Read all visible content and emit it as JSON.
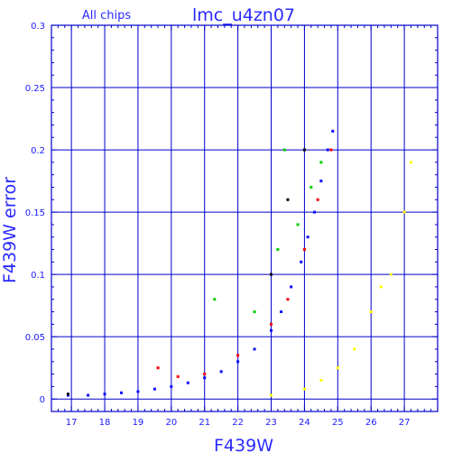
{
  "chart_data": {
    "type": "scatter",
    "subtitle": "All chips",
    "title": "lmc_u4zn07",
    "xlabel": "F439W",
    "ylabel": "F439W error",
    "xlim": [
      16.4,
      28.0
    ],
    "ylim": [
      -0.01,
      0.3
    ],
    "x_ticks": [
      17,
      18,
      19,
      20,
      21,
      22,
      23,
      24,
      25,
      26,
      27
    ],
    "y_ticks": [
      0,
      0.05,
      0.1,
      0.15,
      0.2,
      0.25,
      0.3
    ],
    "y_tick_labels": [
      "0",
      "0.05",
      "0.1",
      "0.15",
      "0.2",
      "0.25",
      "0.3"
    ],
    "grid": true,
    "colors": {
      "axes": "#0000cc",
      "grid": "#0000cc",
      "text": "#2a2aff",
      "series_blue": "#0a0aff",
      "series_red": "#ff0000",
      "series_green": "#00cc00",
      "series_yellow": "#ffff00",
      "series_black": "#000000"
    },
    "series": [
      {
        "color": "#0a0aff",
        "description": "main error-magnitude locus",
        "points": [
          [
            16.9,
            0.003
          ],
          [
            17.5,
            0.003
          ],
          [
            18.0,
            0.004
          ],
          [
            18.5,
            0.005
          ],
          [
            19.0,
            0.006
          ],
          [
            19.5,
            0.008
          ],
          [
            20.0,
            0.01
          ],
          [
            20.5,
            0.013
          ],
          [
            21.0,
            0.017
          ],
          [
            21.5,
            0.022
          ],
          [
            22.0,
            0.03
          ],
          [
            22.5,
            0.04
          ],
          [
            23.0,
            0.055
          ],
          [
            23.3,
            0.07
          ],
          [
            23.6,
            0.09
          ],
          [
            23.9,
            0.11
          ],
          [
            24.1,
            0.13
          ],
          [
            24.3,
            0.15
          ],
          [
            24.5,
            0.175
          ],
          [
            24.7,
            0.2
          ],
          [
            24.85,
            0.215
          ]
        ]
      },
      {
        "color": "#ff0000",
        "description": "red points along locus",
        "points": [
          [
            19.6,
            0.025
          ],
          [
            20.2,
            0.018
          ],
          [
            21.0,
            0.02
          ],
          [
            22.0,
            0.035
          ],
          [
            23.0,
            0.06
          ],
          [
            23.5,
            0.08
          ],
          [
            24.0,
            0.12
          ],
          [
            24.4,
            0.16
          ],
          [
            24.8,
            0.2
          ]
        ]
      },
      {
        "color": "#00cc00",
        "description": "green points along locus",
        "points": [
          [
            21.3,
            0.08
          ],
          [
            22.5,
            0.07
          ],
          [
            23.2,
            0.12
          ],
          [
            23.4,
            0.2
          ],
          [
            23.8,
            0.14
          ],
          [
            24.2,
            0.17
          ],
          [
            24.5,
            0.19
          ]
        ]
      },
      {
        "color": "#ffff00",
        "description": "yellow faint-branch points",
        "points": [
          [
            23.0,
            0.003
          ],
          [
            24.0,
            0.008
          ],
          [
            24.5,
            0.015
          ],
          [
            25.0,
            0.025
          ],
          [
            25.5,
            0.04
          ],
          [
            26.0,
            0.07
          ],
          [
            26.3,
            0.09
          ],
          [
            26.6,
            0.1
          ],
          [
            27.0,
            0.15
          ],
          [
            27.2,
            0.19
          ]
        ]
      },
      {
        "color": "#000000",
        "description": "black points",
        "points": [
          [
            16.9,
            0.004
          ],
          [
            23.0,
            0.1
          ],
          [
            23.5,
            0.16
          ],
          [
            24.0,
            0.2
          ]
        ]
      }
    ]
  }
}
